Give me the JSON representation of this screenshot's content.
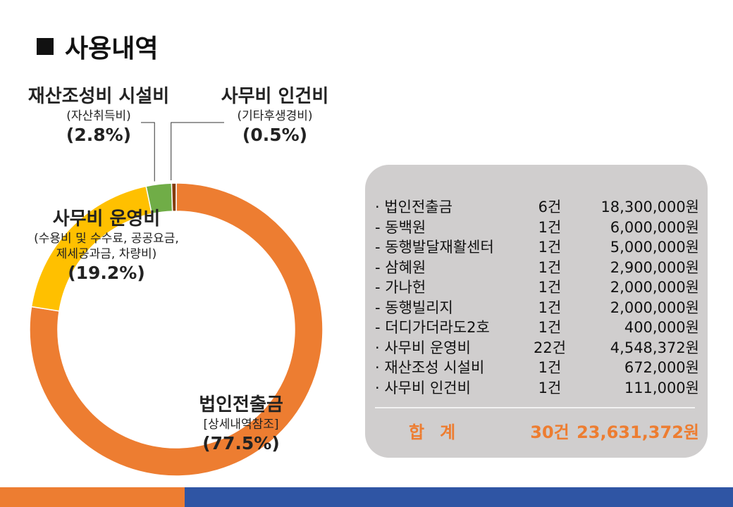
{
  "page": {
    "title": "사용내역"
  },
  "chart_data": {
    "type": "pie",
    "donut": true,
    "title": "",
    "slices": [
      {
        "key": "corp",
        "name": "법인전출금",
        "note": "[상세내역참조]",
        "value": 77.5,
        "pct_label": "(77.5%)",
        "color": "#ed7d31"
      },
      {
        "key": "ops",
        "name": "사무비 운영비",
        "note": "(수용비 및  수수료, 공공요금,",
        "note2": "제세공과금, 차량비)",
        "value": 19.2,
        "pct_label": "(19.2%)",
        "color": "#ffc000"
      },
      {
        "key": "facility",
        "name": "재산조성비 시설비",
        "note": "(자산취득비)",
        "value": 2.8,
        "pct_label": "(2.8%)",
        "color": "#70ad47"
      },
      {
        "key": "personnel",
        "name": "사무비 인건비",
        "note": "(기타후생경비)",
        "value": 0.5,
        "pct_label": "(0.5%)",
        "color": "#843c0c"
      }
    ]
  },
  "table": {
    "rows": [
      {
        "name": "· 법인전출금",
        "count": "6건",
        "amount": "18,300,000원"
      },
      {
        "name": " - 동백원",
        "count": "1건",
        "amount": "6,000,000원"
      },
      {
        "name": " - 동행발달재활센터",
        "count": "1건",
        "amount": "5,000,000원"
      },
      {
        "name": " - 삼혜원",
        "count": "1건",
        "amount": "2,900,000원"
      },
      {
        "name": " - 가나헌",
        "count": "1건",
        "amount": "2,000,000원"
      },
      {
        "name": " - 동행빌리지",
        "count": "1건",
        "amount": "2,000,000원"
      },
      {
        "name": " - 더디가더라도2호",
        "count": "1건",
        "amount": "400,000원"
      },
      {
        "name": " · 사무비 운영비",
        "count": "22건",
        "amount": "4,548,372원"
      },
      {
        "name": " · 재산조성 시설비",
        "count": "1건",
        "amount": "672,000원"
      },
      {
        "name": " · 사무비 인건비",
        "count": "1건",
        "amount": "111,000원"
      }
    ],
    "total": {
      "name": "합계",
      "count": "30건",
      "amount": "23,631,372원"
    }
  },
  "colors": {
    "accent_orange": "#ed7d31",
    "accent_blue": "#2f55a4",
    "panel": "#d0cece"
  }
}
